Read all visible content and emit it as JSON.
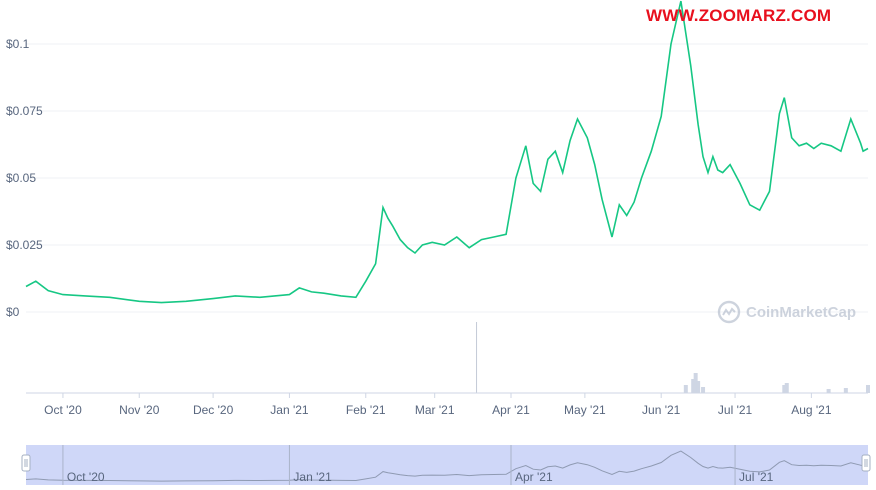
{
  "watermark": {
    "text": "WWW.ZOOMARZ.COM"
  },
  "brand": {
    "name": "CoinMarketCap",
    "icon": "coinmarketcap-logo-icon"
  },
  "colors": {
    "price_line": "#16c784",
    "navigator_fill": "#c7d0f7",
    "navigator_line": "#a6b0c3",
    "grid": "#eff2f5",
    "watermark": "#e8101e"
  },
  "chart_data": {
    "type": "line",
    "y_ticks": [
      "$0.1",
      "$0.075",
      "$0.05",
      "$0.025",
      "$0"
    ],
    "y_tick_values": [
      0.1,
      0.075,
      0.05,
      0.025,
      0
    ],
    "ylim": [
      0,
      0.1
    ],
    "x_tick_labels": [
      "Oct '20",
      "Nov '20",
      "Dec '20",
      "Jan '21",
      "Feb '21",
      "Mar '21",
      "Apr '21",
      "May '21",
      "Jun '21",
      "Jul '21",
      "Aug '21"
    ],
    "x_tick_dates": [
      "2020-10-01",
      "2020-11-01",
      "2020-12-01",
      "2021-01-01",
      "2021-02-01",
      "2021-03-01",
      "2021-04-01",
      "2021-05-01",
      "2021-06-01",
      "2021-07-01",
      "2021-08-01"
    ],
    "xlim": [
      "2020-09-16",
      "2021-08-24"
    ],
    "grid": true,
    "series": [
      {
        "x": [
          "2020-09-16",
          "2020-09-20",
          "2020-09-25",
          "2020-10-01",
          "2020-10-10",
          "2020-10-20",
          "2020-11-01",
          "2020-11-10",
          "2020-11-20",
          "2020-12-01",
          "2020-12-10",
          "2020-12-20",
          "2021-01-01",
          "2021-01-05",
          "2021-01-10",
          "2021-01-15",
          "2021-01-22",
          "2021-01-28",
          "2021-02-01",
          "2021-02-05",
          "2021-02-08",
          "2021-02-10",
          "2021-02-12",
          "2021-02-15",
          "2021-02-18",
          "2021-02-21",
          "2021-02-24",
          "2021-02-28",
          "2021-03-05",
          "2021-03-10",
          "2021-03-15",
          "2021-03-20",
          "2021-03-25",
          "2021-03-30",
          "2021-04-03",
          "2021-04-07",
          "2021-04-10",
          "2021-04-13",
          "2021-04-16",
          "2021-04-19",
          "2021-04-22",
          "2021-04-25",
          "2021-04-28",
          "2021-05-02",
          "2021-05-05",
          "2021-05-08",
          "2021-05-12",
          "2021-05-15",
          "2021-05-18",
          "2021-05-21",
          "2021-05-24",
          "2021-05-28",
          "2021-06-01",
          "2021-06-05",
          "2021-06-09",
          "2021-06-13",
          "2021-06-16",
          "2021-06-18",
          "2021-06-20",
          "2021-06-22",
          "2021-06-24",
          "2021-06-26",
          "2021-06-29",
          "2021-07-03",
          "2021-07-07",
          "2021-07-11",
          "2021-07-15",
          "2021-07-19",
          "2021-07-21",
          "2021-07-24",
          "2021-07-27",
          "2021-07-30",
          "2021-08-02",
          "2021-08-05",
          "2021-08-09",
          "2021-08-13",
          "2021-08-17",
          "2021-08-21",
          "2021-08-22",
          "2021-08-24"
        ],
        "values": [
          0.0095,
          0.0115,
          0.008,
          0.0065,
          0.006,
          0.0055,
          0.004,
          0.0035,
          0.004,
          0.005,
          0.006,
          0.0055,
          0.0065,
          0.009,
          0.0075,
          0.007,
          0.006,
          0.0055,
          0.0115,
          0.018,
          0.039,
          0.035,
          0.032,
          0.027,
          0.024,
          0.022,
          0.025,
          0.026,
          0.025,
          0.028,
          0.024,
          0.027,
          0.028,
          0.029,
          0.05,
          0.062,
          0.048,
          0.045,
          0.057,
          0.06,
          0.052,
          0.064,
          0.072,
          0.065,
          0.055,
          0.042,
          0.028,
          0.04,
          0.036,
          0.041,
          0.05,
          0.06,
          0.073,
          0.1,
          0.116,
          0.092,
          0.07,
          0.058,
          0.052,
          0.058,
          0.053,
          0.052,
          0.055,
          0.048,
          0.04,
          0.038,
          0.045,
          0.074,
          0.08,
          0.065,
          0.062,
          0.063,
          0.061,
          0.063,
          0.062,
          0.06,
          0.072,
          0.063,
          0.06,
          0.061
        ]
      }
    ]
  }
}
